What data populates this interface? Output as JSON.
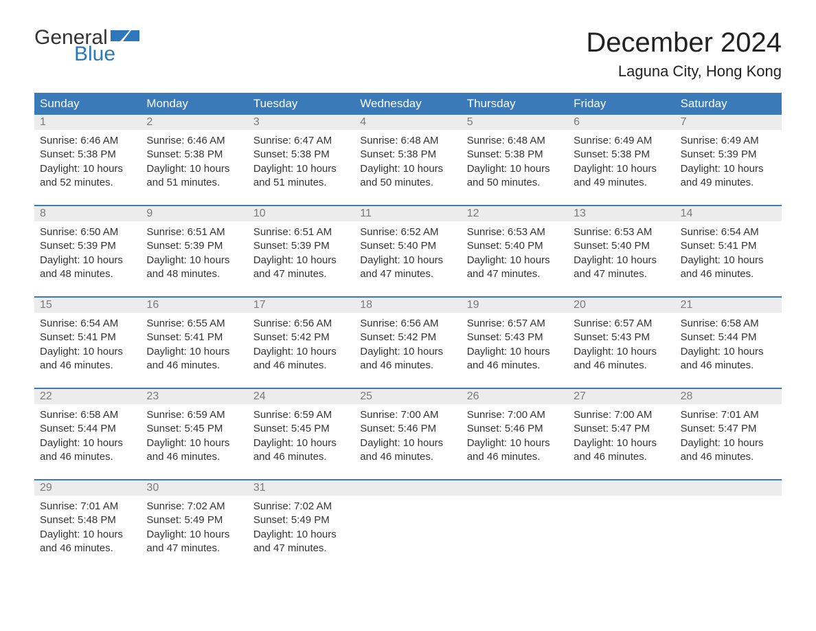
{
  "brand": {
    "part1": "General",
    "part2": "Blue",
    "flag_color": "#2f77bb"
  },
  "title": "December 2024",
  "location": "Laguna City, Hong Kong",
  "colors": {
    "header_bg": "#3a7ab8",
    "header_text": "#ffffff",
    "daynum_bg": "#ececec",
    "daynum_text": "#7a7a7a",
    "body_text": "#333333",
    "week_border": "#3a7ab8",
    "brand_dark": "#333333",
    "brand_blue": "#2f77bb"
  },
  "fonts": {
    "title_size": 40,
    "location_size": 22,
    "weekday_size": 17,
    "daynum_size": 16,
    "body_size": 15,
    "logo_size": 30
  },
  "weekdays": [
    "Sunday",
    "Monday",
    "Tuesday",
    "Wednesday",
    "Thursday",
    "Friday",
    "Saturday"
  ],
  "labels": {
    "sunrise": "Sunrise",
    "sunset": "Sunset",
    "daylight": "Daylight"
  },
  "weeks": [
    [
      {
        "day": 1,
        "sunrise": "6:46 AM",
        "sunset": "5:38 PM",
        "daylight": "10 hours and 52 minutes."
      },
      {
        "day": 2,
        "sunrise": "6:46 AM",
        "sunset": "5:38 PM",
        "daylight": "10 hours and 51 minutes."
      },
      {
        "day": 3,
        "sunrise": "6:47 AM",
        "sunset": "5:38 PM",
        "daylight": "10 hours and 51 minutes."
      },
      {
        "day": 4,
        "sunrise": "6:48 AM",
        "sunset": "5:38 PM",
        "daylight": "10 hours and 50 minutes."
      },
      {
        "day": 5,
        "sunrise": "6:48 AM",
        "sunset": "5:38 PM",
        "daylight": "10 hours and 50 minutes."
      },
      {
        "day": 6,
        "sunrise": "6:49 AM",
        "sunset": "5:38 PM",
        "daylight": "10 hours and 49 minutes."
      },
      {
        "day": 7,
        "sunrise": "6:49 AM",
        "sunset": "5:39 PM",
        "daylight": "10 hours and 49 minutes."
      }
    ],
    [
      {
        "day": 8,
        "sunrise": "6:50 AM",
        "sunset": "5:39 PM",
        "daylight": "10 hours and 48 minutes."
      },
      {
        "day": 9,
        "sunrise": "6:51 AM",
        "sunset": "5:39 PM",
        "daylight": "10 hours and 48 minutes."
      },
      {
        "day": 10,
        "sunrise": "6:51 AM",
        "sunset": "5:39 PM",
        "daylight": "10 hours and 47 minutes."
      },
      {
        "day": 11,
        "sunrise": "6:52 AM",
        "sunset": "5:40 PM",
        "daylight": "10 hours and 47 minutes."
      },
      {
        "day": 12,
        "sunrise": "6:53 AM",
        "sunset": "5:40 PM",
        "daylight": "10 hours and 47 minutes."
      },
      {
        "day": 13,
        "sunrise": "6:53 AM",
        "sunset": "5:40 PM",
        "daylight": "10 hours and 47 minutes."
      },
      {
        "day": 14,
        "sunrise": "6:54 AM",
        "sunset": "5:41 PM",
        "daylight": "10 hours and 46 minutes."
      }
    ],
    [
      {
        "day": 15,
        "sunrise": "6:54 AM",
        "sunset": "5:41 PM",
        "daylight": "10 hours and 46 minutes."
      },
      {
        "day": 16,
        "sunrise": "6:55 AM",
        "sunset": "5:41 PM",
        "daylight": "10 hours and 46 minutes."
      },
      {
        "day": 17,
        "sunrise": "6:56 AM",
        "sunset": "5:42 PM",
        "daylight": "10 hours and 46 minutes."
      },
      {
        "day": 18,
        "sunrise": "6:56 AM",
        "sunset": "5:42 PM",
        "daylight": "10 hours and 46 minutes."
      },
      {
        "day": 19,
        "sunrise": "6:57 AM",
        "sunset": "5:43 PM",
        "daylight": "10 hours and 46 minutes."
      },
      {
        "day": 20,
        "sunrise": "6:57 AM",
        "sunset": "5:43 PM",
        "daylight": "10 hours and 46 minutes."
      },
      {
        "day": 21,
        "sunrise": "6:58 AM",
        "sunset": "5:44 PM",
        "daylight": "10 hours and 46 minutes."
      }
    ],
    [
      {
        "day": 22,
        "sunrise": "6:58 AM",
        "sunset": "5:44 PM",
        "daylight": "10 hours and 46 minutes."
      },
      {
        "day": 23,
        "sunrise": "6:59 AM",
        "sunset": "5:45 PM",
        "daylight": "10 hours and 46 minutes."
      },
      {
        "day": 24,
        "sunrise": "6:59 AM",
        "sunset": "5:45 PM",
        "daylight": "10 hours and 46 minutes."
      },
      {
        "day": 25,
        "sunrise": "7:00 AM",
        "sunset": "5:46 PM",
        "daylight": "10 hours and 46 minutes."
      },
      {
        "day": 26,
        "sunrise": "7:00 AM",
        "sunset": "5:46 PM",
        "daylight": "10 hours and 46 minutes."
      },
      {
        "day": 27,
        "sunrise": "7:00 AM",
        "sunset": "5:47 PM",
        "daylight": "10 hours and 46 minutes."
      },
      {
        "day": 28,
        "sunrise": "7:01 AM",
        "sunset": "5:47 PM",
        "daylight": "10 hours and 46 minutes."
      }
    ],
    [
      {
        "day": 29,
        "sunrise": "7:01 AM",
        "sunset": "5:48 PM",
        "daylight": "10 hours and 46 minutes."
      },
      {
        "day": 30,
        "sunrise": "7:02 AM",
        "sunset": "5:49 PM",
        "daylight": "10 hours and 47 minutes."
      },
      {
        "day": 31,
        "sunrise": "7:02 AM",
        "sunset": "5:49 PM",
        "daylight": "10 hours and 47 minutes."
      },
      null,
      null,
      null,
      null
    ]
  ]
}
